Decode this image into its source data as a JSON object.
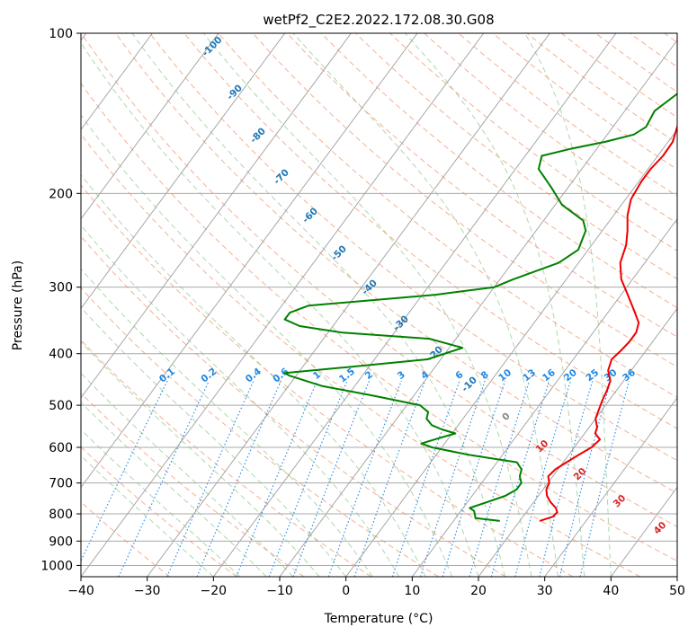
{
  "chart_data": {
    "type": "line",
    "title": "wetPf2_C2E2.2022.172.08.30.G08",
    "xlabel": "Temperature (°C)",
    "ylabel": "Pressure (hPa)",
    "xlim": [
      -40,
      50
    ],
    "ylim": [
      1050,
      100
    ],
    "x_scale": "linear",
    "y_scale": "log",
    "x_ticks": [
      "−40",
      "−30",
      "−20",
      "−10",
      "0",
      "10",
      "20",
      "30",
      "40",
      "50"
    ],
    "y_ticks": [
      "100",
      "200",
      "300",
      "400",
      "500",
      "600",
      "700",
      "800",
      "900",
      "1000"
    ],
    "y_tick_values": [
      100,
      200,
      300,
      400,
      500,
      600,
      700,
      800,
      900,
      1000
    ],
    "grid": "horizontal pressure lines",
    "colors": {
      "temperature": "#ee0000",
      "dewpoint": "#008000",
      "isotherm": "#9e9e9e",
      "dry_adiabat": "#f2a37f",
      "moist_adiabat": "#9fd19f",
      "mixing_ratio": "#1e88e5",
      "isotherm_label": "#d62728",
      "isotherm_zero_label": "#888888",
      "adiabat_label": "#1f77b4"
    },
    "series": [
      {
        "name": "",
        "role": "temperature",
        "pressure": [
          825,
          810,
          795,
          780,
          760,
          740,
          720,
          700,
          680,
          660,
          640,
          620,
          600,
          580,
          565,
          550,
          530,
          510,
          490,
          470,
          450,
          430,
          410,
          395,
          380,
          365,
          350,
          330,
          310,
          290,
          270,
          250,
          235,
          220,
          205,
          190,
          180,
          170,
          160,
          150,
          140,
          135,
          130,
          125,
          120,
          115,
          110,
          105,
          100
        ],
        "temperature": [
          23,
          24.5,
          24.7,
          24,
          22.5,
          21.3,
          20.5,
          20.2,
          19.3,
          19.6,
          20.5,
          21.5,
          22.6,
          23.0,
          21.6,
          21.2,
          20.0,
          19.5,
          19.0,
          18.6,
          18.0,
          16.5,
          15.8,
          16.2,
          16.5,
          16.5,
          15.8,
          13.5,
          11.0,
          8.3,
          6.3,
          5.2,
          3.8,
          2.1,
          0.8,
          0.4,
          0.4,
          0.8,
          0.7,
          -0.3,
          -1.3,
          -1.2,
          -0.4,
          1.1,
          2.4,
          3.0,
          2.8,
          2.6,
          2.3
        ]
      },
      {
        "name": "",
        "role": "dewpoint",
        "pressure": [
          825,
          815,
          805,
          790,
          780,
          760,
          740,
          720,
          700,
          680,
          660,
          640,
          620,
          600,
          590,
          580,
          565,
          555,
          545,
          530,
          515,
          500,
          480,
          460,
          440,
          435,
          425,
          410,
          390,
          375,
          365,
          355,
          345,
          335,
          325,
          310,
          300,
          290,
          270,
          255,
          245,
          235,
          225,
          210,
          195,
          180,
          170,
          165,
          160,
          155,
          150,
          140,
          130,
          125,
          120,
          110,
          100
        ],
        "temperature": [
          17,
          13,
          12.6,
          12,
          11.0,
          13,
          15,
          16,
          16,
          15,
          14.5,
          13,
          5,
          -1.5,
          -3.5,
          -2.0,
          0.5,
          -2.0,
          -4.0,
          -5.5,
          -6.0,
          -8.0,
          -16,
          -25,
          -31,
          -32,
          -24,
          -12,
          -8,
          -14,
          -28,
          -35,
          -38,
          -38,
          -36,
          -18,
          -10,
          -8,
          -3,
          -1.5,
          -2.0,
          -2.5,
          -4.0,
          -9.0,
          -12.5,
          -16.5,
          -17.5,
          -14.0,
          -9.5,
          -6.0,
          -5.0,
          -5.5,
          -4.0,
          -3.5,
          -2.5,
          0.5,
          1.5
        ]
      }
    ],
    "isotherm_labels": [
      "0",
      "10",
      "20",
      "30",
      "40"
    ],
    "dry_adiabat_labels": [
      "-100",
      "-90",
      "-80",
      "-70",
      "-60",
      "-50",
      "-40",
      "-30",
      "-20",
      "-10"
    ],
    "mixing_ratio_labels": [
      "0.1",
      "0.2",
      "0.4",
      "0.6",
      "1",
      "1.5",
      "2",
      "3",
      "4",
      "6",
      "8",
      "10",
      "13",
      "16",
      "20",
      "25",
      "30",
      "36"
    ]
  }
}
